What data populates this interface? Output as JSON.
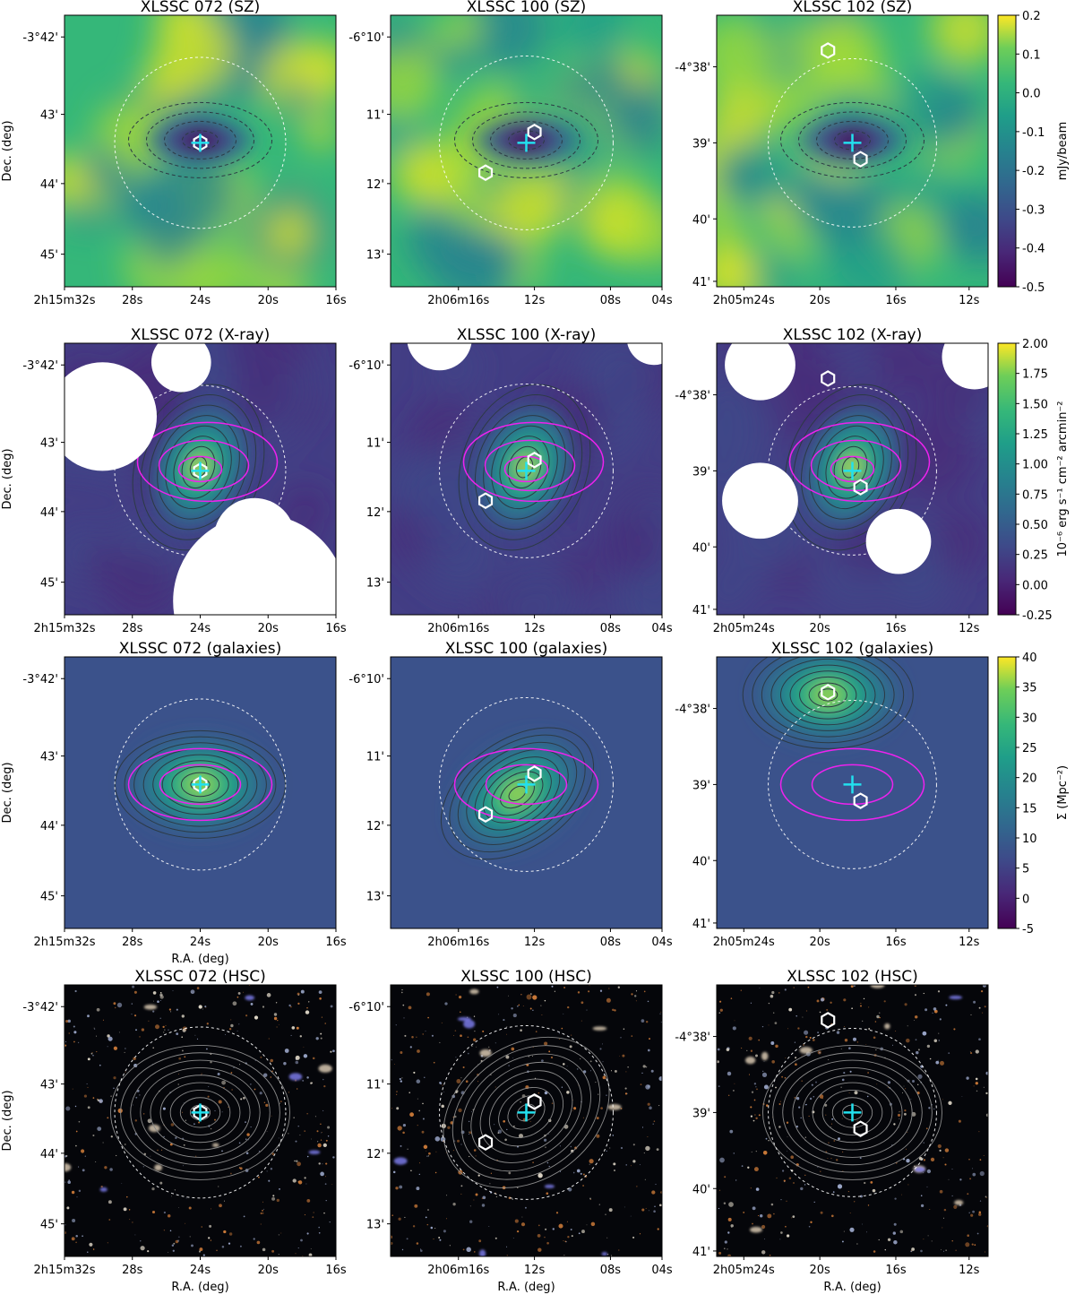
{
  "chart_data": {
    "type": "heatmap",
    "columns": [
      "XLSSC 072",
      "XLSSC 100",
      "XLSSC 102"
    ],
    "rows": [
      {
        "key": "sz",
        "label": "SZ",
        "cmap": "viridis",
        "colorbar": {
          "label": "mJy/beam",
          "ticks": [
            "0.2",
            "0.1",
            "0.0",
            "-0.1",
            "-0.2",
            "-0.3",
            "-0.4",
            "-0.5"
          ],
          "range": [
            -0.5,
            0.2
          ]
        }
      },
      {
        "key": "xray",
        "label": "X-ray",
        "cmap": "viridis",
        "colorbar": {
          "label": "10⁻⁶ erg s⁻¹ cm⁻² arcmin⁻²",
          "ticks": [
            "2.00",
            "1.75",
            "1.50",
            "1.25",
            "1.00",
            "0.75",
            "0.50",
            "0.25",
            "0.00",
            "-0.25"
          ],
          "range": [
            -0.25,
            2.0
          ]
        }
      },
      {
        "key": "gal",
        "label": "galaxies",
        "cmap": "viridis",
        "colorbar": {
          "label": "Σ (Mpc⁻²)",
          "ticks": [
            "40",
            "35",
            "30",
            "25",
            "20",
            "15",
            "10",
            "5",
            "0",
            "-5"
          ],
          "range": [
            -5,
            40
          ]
        }
      },
      {
        "key": "hsc",
        "label": "HSC",
        "cmap": "rgb-image",
        "colorbar": null
      }
    ],
    "titles": [
      [
        "XLSSC 072 (SZ)",
        "XLSSC 100 (SZ)",
        "XLSSC 102 (SZ)"
      ],
      [
        "XLSSC 072 (X-ray)",
        "XLSSC 100 (X-ray)",
        "XLSSC 102 (X-ray)"
      ],
      [
        "XLSSC 072 (galaxies)",
        "XLSSC 100 (galaxies)",
        "XLSSC 102 (galaxies)"
      ],
      [
        "XLSSC 072 (HSC)",
        "XLSSC 100 (HSC)",
        "XLSSC 102 (HSC)"
      ]
    ],
    "xticks": [
      [
        "2h15m32s",
        "28s",
        "24s",
        "20s",
        "16s"
      ],
      [
        "2h06m16s",
        "12s",
        "08s",
        "04s"
      ],
      [
        "2h05m24s",
        "20s",
        "16s",
        "12s"
      ]
    ],
    "yticks": [
      [
        "-3°42'",
        "43'",
        "44'",
        "45'"
      ],
      [
        "-6°10'",
        "11'",
        "12'",
        "13'"
      ],
      [
        "-4°38'",
        "39'",
        "40'",
        "41'"
      ]
    ],
    "xlabel": "R.A. (deg)",
    "ylabel": "Dec. (deg)",
    "markers": {
      "cross": "cyan",
      "hexagon": "white",
      "circle": "white dashed"
    },
    "overlays": {
      "xray_contours": "dark grey",
      "sz_contours": "magenta",
      "galaxy_contours": "grey"
    }
  },
  "colors": {
    "cyan": "#22e0ee",
    "magenta": "#ee22ee",
    "contour": "#2c3a45"
  }
}
